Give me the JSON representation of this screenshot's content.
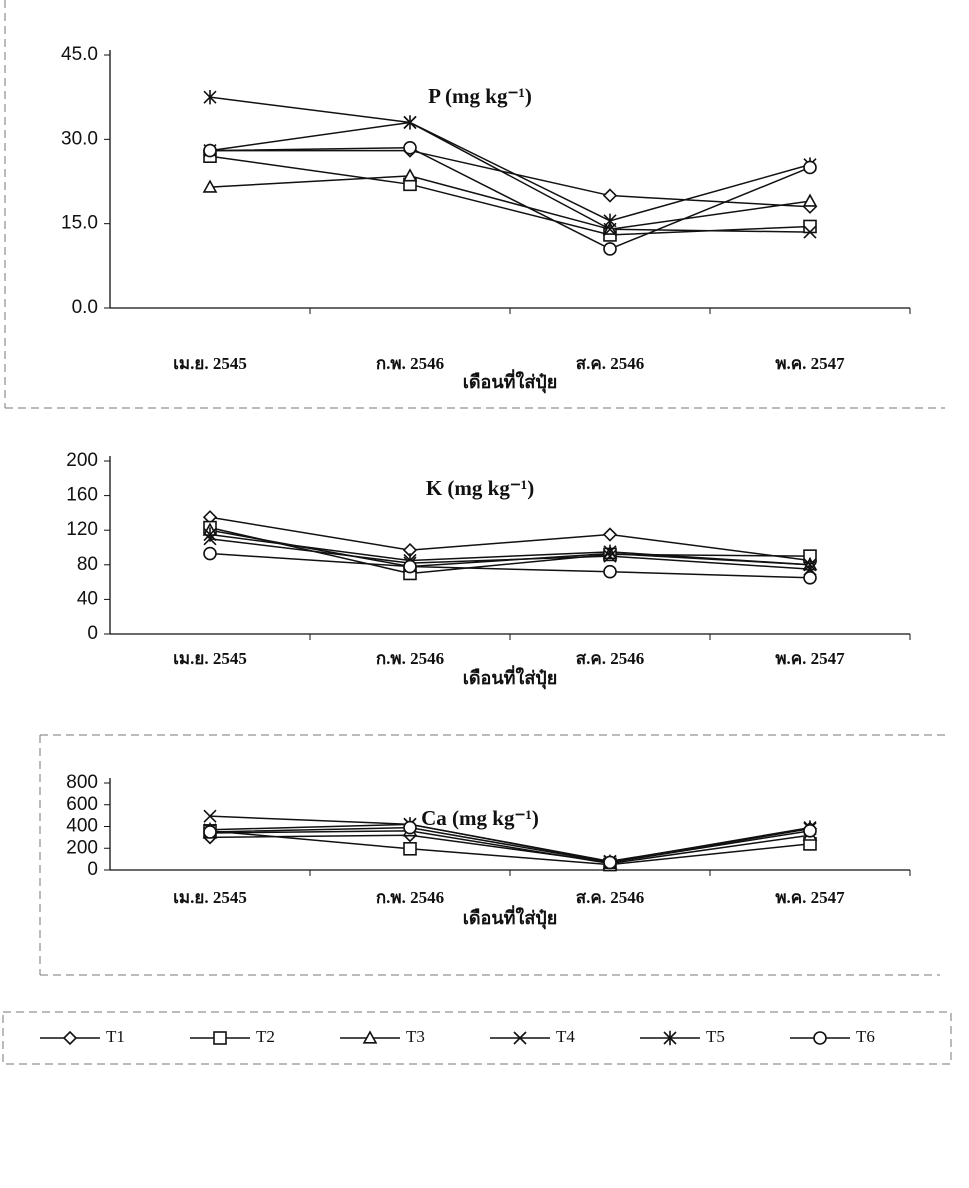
{
  "chart_data": [
    {
      "type": "line",
      "title": "P (mg kg⁻¹)",
      "xlabel": "เดือนที่ใส่ปุ๋ย",
      "color": "#111111",
      "categories": [
        "เม.ย. 2545",
        "ก.พ. 2546",
        "ส.ค. 2546",
        "พ.ค. 2547"
      ],
      "ylim": [
        0,
        45
      ],
      "yticks": [
        {
          "value": 0,
          "label": "0.0"
        },
        {
          "value": 15,
          "label": "15.0"
        },
        {
          "value": 30,
          "label": "30.0"
        },
        {
          "value": 45,
          "label": "45.0"
        }
      ],
      "series": [
        {
          "values": [
            28,
            28,
            20,
            18
          ]
        },
        {
          "values": [
            27,
            22,
            13,
            14.5
          ]
        },
        {
          "values": [
            21.5,
            23.5,
            14,
            19
          ]
        },
        {
          "values": [
            28,
            33,
            14,
            13.5
          ]
        },
        {
          "values": [
            37.5,
            33,
            15.5,
            25.5
          ]
        },
        {
          "values": [
            28,
            28.5,
            10.5,
            25
          ]
        }
      ]
    },
    {
      "type": "line",
      "title": "K (mg kg⁻¹)",
      "xlabel": "เดือนที่ใส่ปุ๋ย",
      "color": "#111111",
      "categories": [
        "เม.ย. 2545",
        "ก.พ. 2546",
        "ส.ค. 2546",
        "พ.ค. 2547"
      ],
      "ylim": [
        0,
        200
      ],
      "yticks": [
        0,
        40,
        80,
        120,
        160,
        200
      ],
      "series": [
        {
          "values": [
            135,
            97,
            115,
            85
          ]
        },
        {
          "values": [
            123,
            70,
            92,
            90
          ]
        },
        {
          "values": [
            120,
            78,
            93,
            80
          ]
        },
        {
          "values": [
            110,
            82,
            90,
            75
          ]
        },
        {
          "values": [
            115,
            85,
            95,
            80
          ]
        },
        {
          "values": [
            93,
            78,
            72,
            65
          ]
        }
      ]
    },
    {
      "type": "line",
      "title": "Ca (mg kg⁻¹)",
      "xlabel": "เดือนที่ใส่ปุ๋ย",
      "color": "#111111",
      "categories": [
        "เม.ย. 2545",
        "ก.พ. 2546",
        "ส.ค. 2546",
        "พ.ค. 2547"
      ],
      "ylim": [
        0,
        800
      ],
      "yticks": [
        0,
        200,
        400,
        600,
        800
      ],
      "series": [
        {
          "values": [
            300,
            320,
            70,
            380
          ]
        },
        {
          "values": [
            360,
            195,
            50,
            240
          ]
        },
        {
          "values": [
            340,
            360,
            60,
            320
          ]
        },
        {
          "values": [
            495,
            420,
            80,
            380
          ]
        },
        {
          "values": [
            370,
            420,
            75,
            390
          ]
        },
        {
          "values": [
            350,
            390,
            70,
            360
          ]
        }
      ]
    }
  ],
  "legend": {
    "names": [
      "T1",
      "T2",
      "T3",
      "T4",
      "T5",
      "T6"
    ],
    "markers": [
      "diamond",
      "square",
      "triangle",
      "x",
      "star",
      "circle"
    ]
  }
}
